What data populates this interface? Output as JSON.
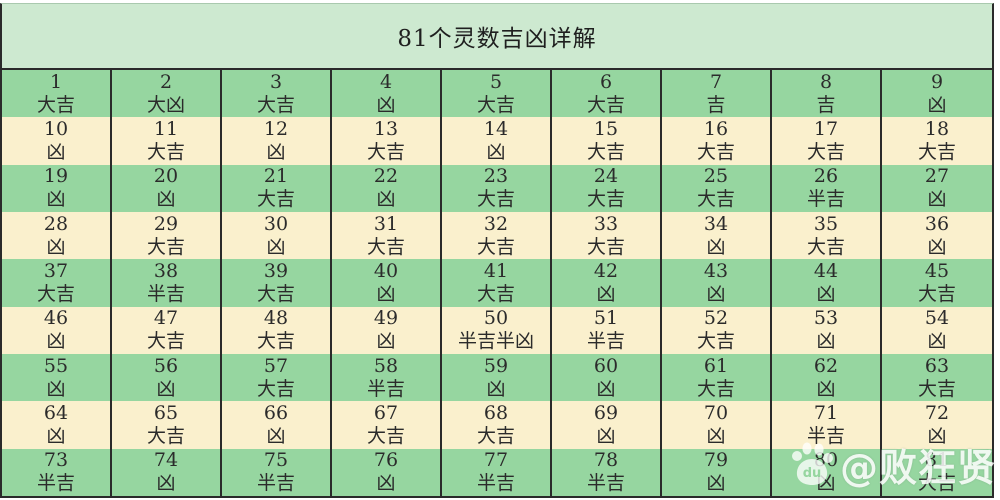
{
  "page": {
    "title": "81个灵数吉凶详解"
  },
  "watermark": {
    "text": "@败狂贤",
    "icon": "baidu-paw-icon",
    "du": "du"
  },
  "colors": {
    "green_row": "#96d6a0",
    "cream_row": "#faf0cd",
    "title_bg": "#cde9d0",
    "border": "#2a2a2a",
    "text": "#2b2b2b",
    "watermark": "#ffffff"
  },
  "table": {
    "columns": 9,
    "cells": [
      {
        "n": "1",
        "luck": "大吉"
      },
      {
        "n": "2",
        "luck": "大凶"
      },
      {
        "n": "3",
        "luck": "大吉"
      },
      {
        "n": "4",
        "luck": "凶"
      },
      {
        "n": "5",
        "luck": "大吉"
      },
      {
        "n": "6",
        "luck": "大吉"
      },
      {
        "n": "7",
        "luck": "吉"
      },
      {
        "n": "8",
        "luck": "吉"
      },
      {
        "n": "9",
        "luck": "凶"
      },
      {
        "n": "10",
        "luck": "凶"
      },
      {
        "n": "11",
        "luck": "大吉"
      },
      {
        "n": "12",
        "luck": "凶"
      },
      {
        "n": "13",
        "luck": "大吉"
      },
      {
        "n": "14",
        "luck": "凶"
      },
      {
        "n": "15",
        "luck": "大吉"
      },
      {
        "n": "16",
        "luck": "大吉"
      },
      {
        "n": "17",
        "luck": "大吉"
      },
      {
        "n": "18",
        "luck": "大吉"
      },
      {
        "n": "19",
        "luck": "凶"
      },
      {
        "n": "20",
        "luck": "凶"
      },
      {
        "n": "21",
        "luck": "大吉"
      },
      {
        "n": "22",
        "luck": "凶"
      },
      {
        "n": "23",
        "luck": "大吉"
      },
      {
        "n": "24",
        "luck": "大吉"
      },
      {
        "n": "25",
        "luck": "大吉"
      },
      {
        "n": "26",
        "luck": "半吉"
      },
      {
        "n": "27",
        "luck": "凶"
      },
      {
        "n": "28",
        "luck": "凶"
      },
      {
        "n": "29",
        "luck": "大吉"
      },
      {
        "n": "30",
        "luck": "凶"
      },
      {
        "n": "31",
        "luck": "大吉"
      },
      {
        "n": "32",
        "luck": "大吉"
      },
      {
        "n": "33",
        "luck": "大吉"
      },
      {
        "n": "34",
        "luck": "凶"
      },
      {
        "n": "35",
        "luck": "大吉"
      },
      {
        "n": "36",
        "luck": "凶"
      },
      {
        "n": "37",
        "luck": "大吉"
      },
      {
        "n": "38",
        "luck": "半吉"
      },
      {
        "n": "39",
        "luck": "大吉"
      },
      {
        "n": "40",
        "luck": "凶"
      },
      {
        "n": "41",
        "luck": "大吉"
      },
      {
        "n": "42",
        "luck": "凶"
      },
      {
        "n": "43",
        "luck": "凶"
      },
      {
        "n": "44",
        "luck": "凶"
      },
      {
        "n": "45",
        "luck": "大吉"
      },
      {
        "n": "46",
        "luck": "凶"
      },
      {
        "n": "47",
        "luck": "大吉"
      },
      {
        "n": "48",
        "luck": "大吉"
      },
      {
        "n": "49",
        "luck": "凶"
      },
      {
        "n": "50",
        "luck": "半吉半凶"
      },
      {
        "n": "51",
        "luck": "半吉"
      },
      {
        "n": "52",
        "luck": "大吉"
      },
      {
        "n": "53",
        "luck": "凶"
      },
      {
        "n": "54",
        "luck": "凶"
      },
      {
        "n": "55",
        "luck": "凶"
      },
      {
        "n": "56",
        "luck": "凶"
      },
      {
        "n": "57",
        "luck": "大吉"
      },
      {
        "n": "58",
        "luck": "半吉"
      },
      {
        "n": "59",
        "luck": "凶"
      },
      {
        "n": "60",
        "luck": "凶"
      },
      {
        "n": "61",
        "luck": "大吉"
      },
      {
        "n": "62",
        "luck": "凶"
      },
      {
        "n": "63",
        "luck": "大吉"
      },
      {
        "n": "64",
        "luck": "凶"
      },
      {
        "n": "65",
        "luck": "大吉"
      },
      {
        "n": "66",
        "luck": "凶"
      },
      {
        "n": "67",
        "luck": "大吉"
      },
      {
        "n": "68",
        "luck": "大吉"
      },
      {
        "n": "69",
        "luck": "凶"
      },
      {
        "n": "70",
        "luck": "凶"
      },
      {
        "n": "71",
        "luck": "半吉"
      },
      {
        "n": "72",
        "luck": "凶"
      },
      {
        "n": "73",
        "luck": "半吉"
      },
      {
        "n": "74",
        "luck": "凶"
      },
      {
        "n": "75",
        "luck": "半吉"
      },
      {
        "n": "76",
        "luck": "凶"
      },
      {
        "n": "77",
        "luck": "半吉"
      },
      {
        "n": "78",
        "luck": "半吉"
      },
      {
        "n": "79",
        "luck": "凶"
      },
      {
        "n": "80",
        "luck": "凶"
      },
      {
        "n": "81",
        "luck": "大吉"
      }
    ]
  }
}
